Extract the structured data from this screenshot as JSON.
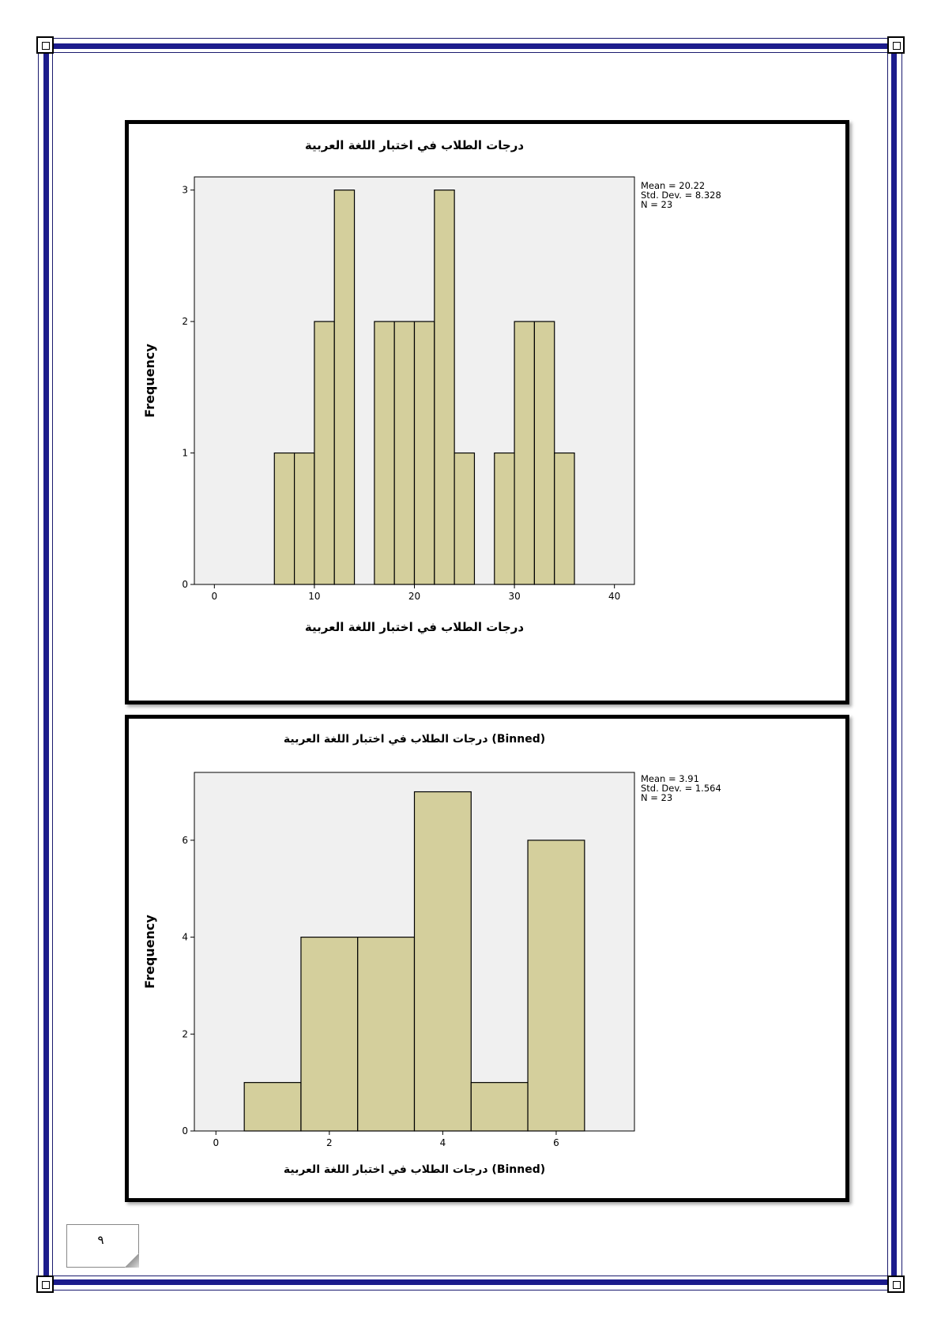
{
  "page": {
    "page_number": "٩"
  },
  "chart_data": [
    {
      "type": "bar",
      "title": "درجات الطلاب في اختبار اللغة العربية",
      "xlabel": "درجات الطلاب في اختبار اللغة العربية",
      "ylabel": "Frequency",
      "bins": [
        {
          "start": 6,
          "end": 8,
          "count": 1
        },
        {
          "start": 8,
          "end": 10,
          "count": 1
        },
        {
          "start": 10,
          "end": 12,
          "count": 2
        },
        {
          "start": 12,
          "end": 14,
          "count": 3
        },
        {
          "start": 16,
          "end": 18,
          "count": 2
        },
        {
          "start": 18,
          "end": 20,
          "count": 2
        },
        {
          "start": 20,
          "end": 22,
          "count": 2
        },
        {
          "start": 22,
          "end": 24,
          "count": 3
        },
        {
          "start": 24,
          "end": 26,
          "count": 1
        },
        {
          "start": 28,
          "end": 30,
          "count": 1
        },
        {
          "start": 30,
          "end": 32,
          "count": 2
        },
        {
          "start": 32,
          "end": 34,
          "count": 2
        },
        {
          "start": 34,
          "end": 36,
          "count": 1
        }
      ],
      "xlim": [
        -2,
        42
      ],
      "ylim": [
        0,
        3.1
      ],
      "xticks": [
        0,
        10,
        20,
        30,
        40
      ],
      "yticks": [
        0,
        1,
        2,
        3
      ],
      "stats": [
        "Mean = 20.22",
        "Std. Dev. = 8.328",
        "N = 23"
      ],
      "bar_color": "#d4cf9c",
      "plot_bg": "#f0f0f0"
    },
    {
      "type": "bar",
      "title": "درجات الطلاب في اختبار اللغة العربية (Binned)",
      "xlabel": "درجات الطلاب في اختبار اللغة العربية (Binned)",
      "ylabel": "Frequency",
      "bins": [
        {
          "start": 0.5,
          "end": 1.5,
          "count": 1
        },
        {
          "start": 1.5,
          "end": 2.5,
          "count": 4
        },
        {
          "start": 2.5,
          "end": 3.5,
          "count": 4
        },
        {
          "start": 3.5,
          "end": 4.5,
          "count": 7
        },
        {
          "start": 4.5,
          "end": 5.5,
          "count": 1
        },
        {
          "start": 5.5,
          "end": 6.5,
          "count": 6
        }
      ],
      "xlim": [
        -0.38,
        7.38
      ],
      "ylim": [
        0,
        7.4
      ],
      "xticks": [
        0,
        2,
        4,
        6
      ],
      "yticks": [
        0,
        2,
        4,
        6
      ],
      "stats": [
        "Mean = 3.91",
        "Std. Dev. = 1.564",
        "N = 23"
      ],
      "bar_color": "#d4cf9c",
      "plot_bg": "#f0f0f0"
    }
  ]
}
